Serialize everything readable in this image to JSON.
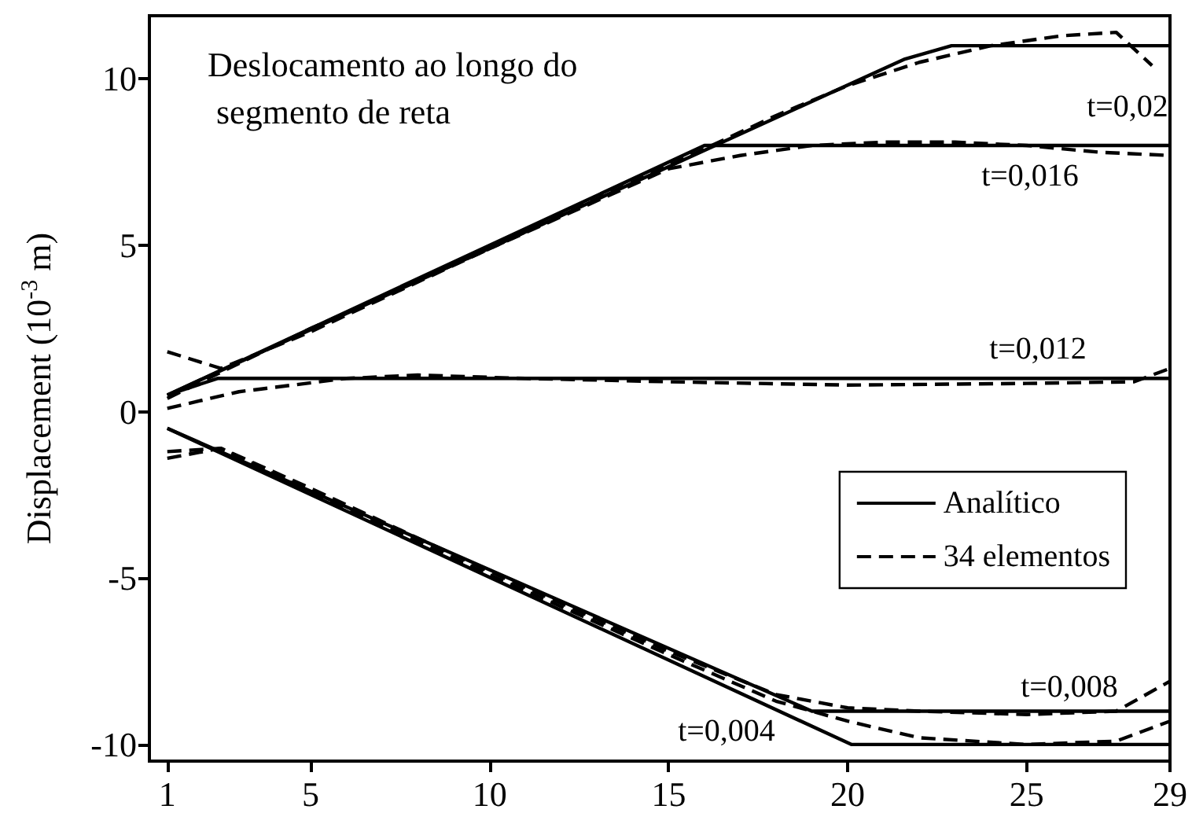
{
  "chart_data": {
    "type": "line",
    "ylabel": "Displacement (10$^{-3}$ m)",
    "xlim": [
      0.5,
      29
    ],
    "xticks": [
      1,
      5,
      10,
      15,
      20,
      25,
      29
    ],
    "ylim": [
      -10.5,
      11.9
    ],
    "yticks": [
      -10,
      -5,
      0,
      5,
      10
    ],
    "grid": false,
    "legend": "right",
    "marker": "none",
    "annotations": [
      "Deslocamento ao longo do segmento de reta",
      "t=0,02",
      "t=0,016",
      "t=0,012",
      "t=0,008",
      "t=0,004"
    ],
    "series": [
      {
        "name": "Analítico",
        "color": "#000000",
        "line_style": "solid",
        "x": [
          1,
          21.6,
          22.9,
          29
        ],
        "values": [
          0.5,
          10.6,
          11.0,
          11.0
        ]
      },
      {
        "color": "#000000",
        "line_style": "solid",
        "x": [
          1,
          16.0,
          29
        ],
        "values": [
          0.5,
          8.0,
          8.0
        ]
      },
      {
        "color": "#000000",
        "line_style": "solid",
        "x": [
          1,
          2.4,
          29
        ],
        "values": [
          0.5,
          1.0,
          1.0
        ]
      },
      {
        "color": "#000000",
        "line_style": "solid",
        "x": [
          1,
          19.0,
          29
        ],
        "values": [
          -0.5,
          -9.0,
          -9.0
        ]
      },
      {
        "color": "#000000",
        "line_style": "solid",
        "x": [
          1,
          20.1,
          29
        ],
        "values": [
          -0.5,
          -10.0,
          -10.0
        ]
      },
      {
        "name": "34 elementos",
        "color": "#000000",
        "line_style": "dashed",
        "x": [
          1,
          2.5,
          5,
          10,
          15,
          18,
          20,
          22,
          24,
          26,
          27.5,
          28.5
        ],
        "values": [
          1.8,
          1.3,
          2.4,
          4.9,
          7.4,
          8.9,
          9.8,
          10.5,
          11.0,
          11.3,
          11.4,
          10.4
        ]
      },
      {
        "color": "#000000",
        "line_style": "dashed",
        "x": [
          1,
          5,
          10,
          15,
          17,
          19,
          21,
          23,
          25,
          27,
          29
        ],
        "values": [
          0.4,
          2.5,
          4.9,
          7.3,
          7.7,
          8.0,
          8.1,
          8.1,
          8.0,
          7.8,
          7.7
        ]
      },
      {
        "color": "#000000",
        "line_style": "dashed",
        "x": [
          1,
          3,
          6,
          8,
          11,
          15,
          20,
          25,
          28,
          29
        ],
        "values": [
          0.1,
          0.6,
          1.0,
          1.1,
          1.0,
          0.9,
          0.8,
          0.85,
          0.9,
          1.3
        ]
      },
      {
        "color": "#000000",
        "line_style": "dashed",
        "x": [
          1,
          2.5,
          5,
          10,
          15,
          18,
          20,
          22,
          25,
          27.5,
          29
        ],
        "values": [
          -1.2,
          -1.1,
          -2.3,
          -4.8,
          -7.2,
          -8.5,
          -8.9,
          -9.0,
          -9.1,
          -9.0,
          -8.1
        ]
      },
      {
        "color": "#000000",
        "line_style": "dashed",
        "x": [
          1,
          2.5,
          5,
          10,
          15,
          18,
          20,
          22,
          25,
          27.5,
          29
        ],
        "values": [
          -1.4,
          -1.1,
          -2.4,
          -4.9,
          -7.3,
          -8.7,
          -9.3,
          -9.8,
          -10.0,
          -9.9,
          -9.3
        ]
      }
    ]
  }
}
